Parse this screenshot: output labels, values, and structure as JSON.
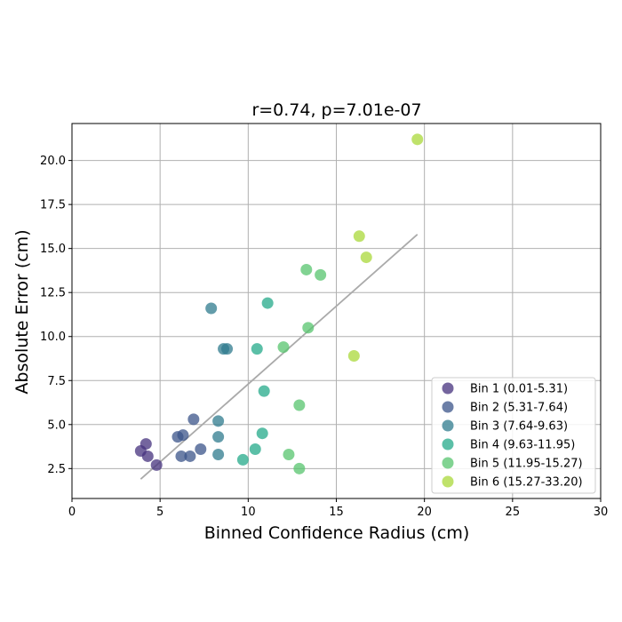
{
  "chart_data": {
    "type": "scatter",
    "title": "r=0.74, p=7.01e-07",
    "xlabel": "Binned Confidence Radius (cm)",
    "ylabel": "Absolute Error (cm)",
    "xlim": [
      0,
      30
    ],
    "ylim": [
      0.8,
      22.1
    ],
    "xticks": [
      "0",
      "5",
      "10",
      "15",
      "20",
      "25",
      "30"
    ],
    "xtick_values": [
      0,
      5,
      10,
      15,
      20,
      25,
      30
    ],
    "yticks": [
      "2.5",
      "5.0",
      "7.5",
      "10.0",
      "12.5",
      "15.0",
      "17.5",
      "20.0"
    ],
    "ytick_values": [
      2.5,
      5.0,
      7.5,
      10.0,
      12.5,
      15.0,
      17.5,
      20.0
    ],
    "grid": true,
    "legend_position": "bottom-right",
    "series": [
      {
        "name": "Bin 1 (0.01-5.31)",
        "color": "#46317e",
        "x": [
          3.9,
          4.2,
          4.3,
          4.8
        ],
        "y": [
          3.5,
          3.9,
          3.2,
          2.7
        ]
      },
      {
        "name": "Bin 2 (5.31-7.64)",
        "color": "#3b548a",
        "x": [
          6.0,
          6.3,
          6.2,
          6.7,
          6.9,
          7.3
        ],
        "y": [
          4.3,
          4.4,
          3.2,
          3.2,
          5.3,
          3.6
        ]
      },
      {
        "name": "Bin 3 (7.64-9.63)",
        "color": "#2f7b8e",
        "x": [
          7.9,
          8.3,
          8.3,
          8.3,
          8.6,
          8.8
        ],
        "y": [
          11.6,
          5.2,
          4.3,
          3.3,
          9.3,
          9.3
        ]
      },
      {
        "name": "Bin 4 (9.63-11.95)",
        "color": "#24a98a",
        "x": [
          9.7,
          10.4,
          10.5,
          10.8,
          10.9,
          11.1
        ],
        "y": [
          3.0,
          3.6,
          9.3,
          4.5,
          6.9,
          11.9
        ]
      },
      {
        "name": "Bin 5 (11.95-15.27)",
        "color": "#57c46e",
        "x": [
          12.0,
          12.3,
          12.9,
          12.9,
          13.3,
          13.4,
          14.1
        ],
        "y": [
          9.4,
          3.3,
          2.5,
          6.1,
          13.8,
          10.5,
          13.5
        ]
      },
      {
        "name": "Bin 6 (15.27-33.20)",
        "color": "#a9d83a",
        "x": [
          16.0,
          16.3,
          16.7,
          19.6
        ],
        "y": [
          8.9,
          15.7,
          14.5,
          21.2
        ]
      }
    ],
    "regression_line": {
      "color": "#aaaaaa",
      "x": [
        3.9,
        19.6
      ],
      "y": [
        1.9,
        15.8
      ]
    }
  }
}
